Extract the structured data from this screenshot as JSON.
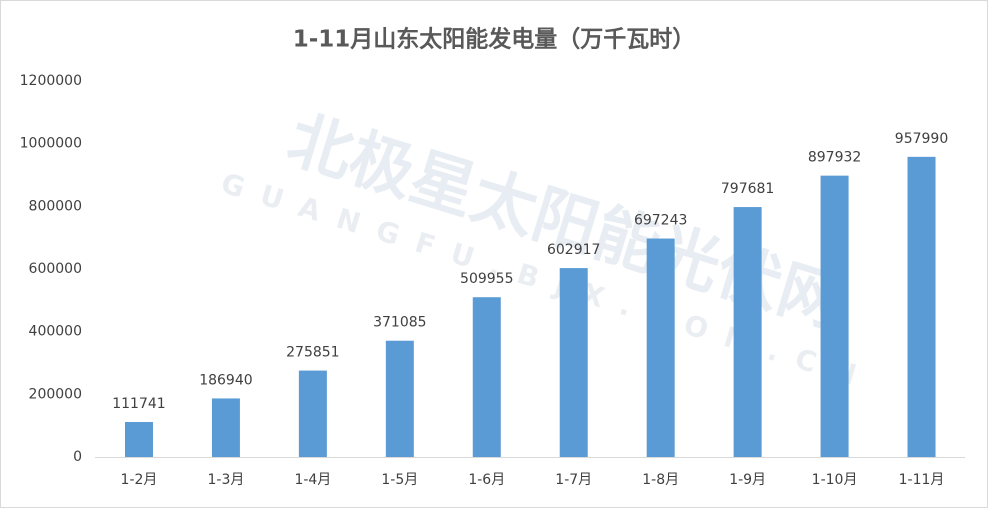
{
  "chart_data": {
    "type": "bar",
    "title": "1-11月山东太阳能发电量（万千瓦时）",
    "categories": [
      "1-2月",
      "1-3月",
      "1-4月",
      "1-5月",
      "1-6月",
      "1-7月",
      "1-8月",
      "1-9月",
      "1-10月",
      "1-11月"
    ],
    "values": [
      111741,
      186940,
      275851,
      371085,
      509955,
      602917,
      697243,
      797681,
      897932,
      957990
    ],
    "color": "#5b9bd5",
    "ylim": [
      0,
      1200000
    ],
    "yticks": [
      0,
      200000,
      400000,
      600000,
      800000,
      1000000,
      1200000
    ],
    "grid": false
  },
  "watermark": {
    "name": "北极星太阳能光伏网",
    "url": "GUANGFU.BJX.COM.CN"
  }
}
